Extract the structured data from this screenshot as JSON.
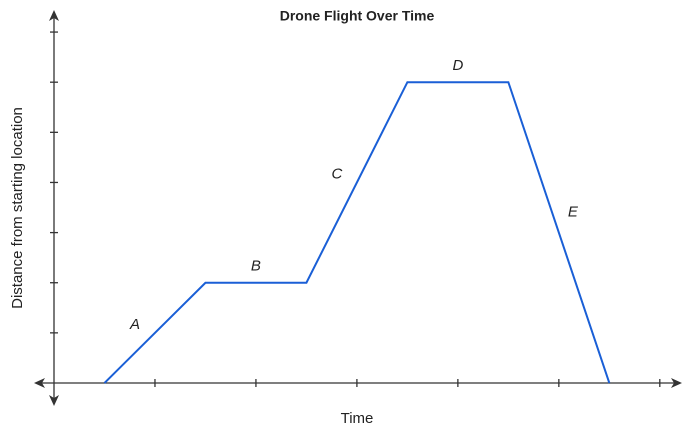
{
  "chart_data": {
    "type": "line",
    "title": "Drone Flight Over Time",
    "x_label": "Time",
    "y_label": "Distance from starting location",
    "x": [
      0.5,
      1.5,
      2.5,
      3.5,
      4.5,
      5.5
    ],
    "values": [
      0,
      2,
      2,
      6,
      6,
      0
    ],
    "annotations": [
      "A",
      "B",
      "C",
      "D",
      "E"
    ],
    "color": "#1a5fd6",
    "xlim": [
      0,
      6.2
    ],
    "ylim": [
      0,
      7.4
    ],
    "xticks": [
      1,
      2,
      3,
      4,
      5,
      6
    ],
    "yticks": [
      1,
      2,
      3,
      4,
      5,
      6,
      7
    ],
    "grid": false
  }
}
